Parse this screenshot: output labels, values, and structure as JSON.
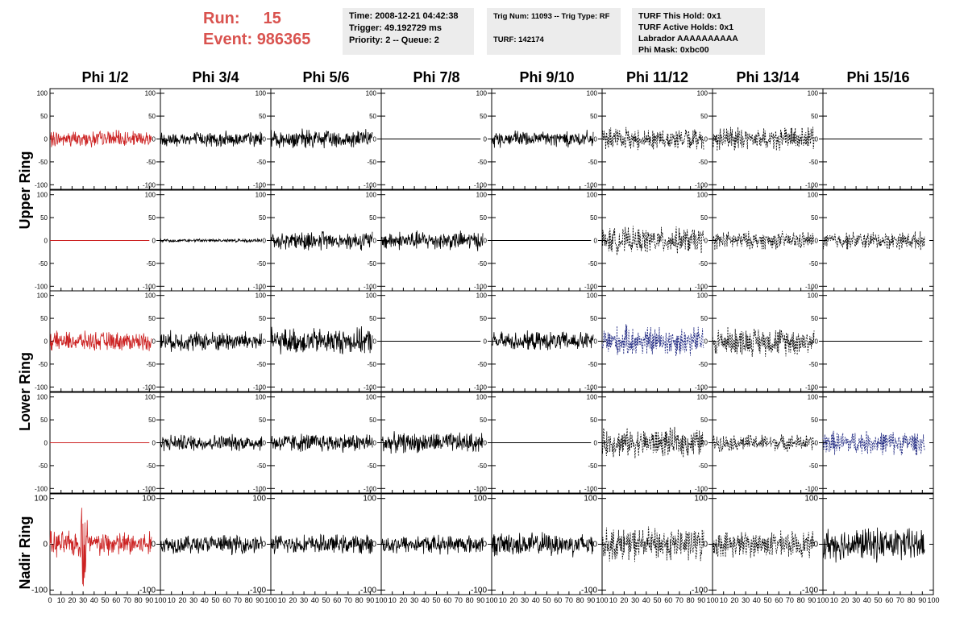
{
  "header": {
    "run_label": "Run:",
    "run_value": "15",
    "event_label": "Event:",
    "event_value": "986365"
  },
  "info": {
    "time": "Time: 2008-12-21 04:42:38",
    "trigger": "Trigger: 49.192729 ms",
    "priority": "Priority: 2 -- Queue: 2",
    "trig_num": "Trig Num: 11093 -- Trig Type: RF",
    "turf": "TURF: 142174",
    "turf_this_hold": "TURF This Hold: 0x1",
    "turf_active_holds": "TURF Active Holds: 0x1",
    "labrador": "Labrador AAAAAAAAAA",
    "phi_mask": "Phi Mask: 0xbc00"
  },
  "columns": [
    "Phi 1/2",
    "Phi 3/4",
    "Phi 5/6",
    "Phi 7/8",
    "Phi 9/10",
    "Phi 11/12",
    "Phi 13/14",
    "Phi 15/16"
  ],
  "rings": [
    "Upper Ring",
    "Lower Ring",
    "Nadir Ring"
  ],
  "chart_data": {
    "type": "line",
    "xlim": [
      0,
      100
    ],
    "ylim": [
      -110,
      110
    ],
    "ytick_labels": [
      "-100",
      "-50",
      "0",
      "50",
      "100"
    ],
    "nadir_ytick_labels": [
      "-100",
      "0",
      "100"
    ],
    "xtick_labels_col1": [
      "0",
      "10",
      "20",
      "30",
      "40",
      "50",
      "60",
      "70",
      "80",
      "90",
      "100"
    ],
    "xtick_labels_other": [
      "10",
      "20",
      "30",
      "40",
      "50",
      "60",
      "70",
      "80",
      "90",
      "100"
    ],
    "colors": {
      "red": "#cc2222",
      "black": "#000000",
      "blue": "#1a237e"
    },
    "rows": [
      [
        {
          "style": "solid",
          "color": "red",
          "amp": 14,
          "spike": 0
        },
        {
          "style": "solid",
          "color": "black",
          "amp": 13,
          "spike": 0
        },
        {
          "style": "solid",
          "color": "black",
          "amp": 16,
          "spike": 0
        },
        {
          "style": "flat",
          "color": "black",
          "amp": 0,
          "spike": 0
        },
        {
          "style": "solid",
          "color": "black",
          "amp": 14,
          "spike": 0
        },
        {
          "style": "dash",
          "color": "black",
          "amp": 18,
          "spike": 0
        },
        {
          "style": "dash",
          "color": "black",
          "amp": 20,
          "spike": 0
        },
        {
          "style": "flat",
          "color": "black",
          "amp": 0,
          "spike": 0
        }
      ],
      [
        {
          "style": "flat",
          "color": "red",
          "amp": 0,
          "spike": 0
        },
        {
          "style": "solid",
          "color": "black",
          "amp": 3,
          "spike": 0
        },
        {
          "style": "solid",
          "color": "black",
          "amp": 16,
          "spike": 0
        },
        {
          "style": "solid",
          "color": "black",
          "amp": 16,
          "spike": 0
        },
        {
          "style": "flat",
          "color": "black",
          "amp": 0,
          "spike": 0
        },
        {
          "style": "dash",
          "color": "black",
          "amp": 22,
          "spike": 0
        },
        {
          "style": "dash",
          "color": "black",
          "amp": 15,
          "spike": 0
        },
        {
          "style": "dash",
          "color": "black",
          "amp": 15,
          "spike": 0
        }
      ],
      [
        {
          "style": "solid",
          "color": "red",
          "amp": 16,
          "spike": 0
        },
        {
          "style": "solid",
          "color": "black",
          "amp": 17,
          "spike": 0
        },
        {
          "style": "solid",
          "color": "black",
          "amp": 22,
          "spike": 0
        },
        {
          "style": "flat",
          "color": "black",
          "amp": 0,
          "spike": 0
        },
        {
          "style": "solid",
          "color": "black",
          "amp": 16,
          "spike": 0
        },
        {
          "style": "dash",
          "color": "blue",
          "amp": 26,
          "spike": 0
        },
        {
          "style": "dash",
          "color": "black",
          "amp": 24,
          "spike": 0
        },
        {
          "style": "flat",
          "color": "black",
          "amp": 0,
          "spike": 0
        }
      ],
      [
        {
          "style": "flat",
          "color": "red",
          "amp": 0,
          "spike": 0
        },
        {
          "style": "solid",
          "color": "black",
          "amp": 14,
          "spike": 0
        },
        {
          "style": "solid",
          "color": "black",
          "amp": 16,
          "spike": 0
        },
        {
          "style": "solid",
          "color": "black",
          "amp": 17,
          "spike": 0
        },
        {
          "style": "flat",
          "color": "black",
          "amp": 0,
          "spike": 0
        },
        {
          "style": "dash",
          "color": "black",
          "amp": 24,
          "spike": 0
        },
        {
          "style": "dash",
          "color": "black",
          "amp": 14,
          "spike": 0
        },
        {
          "style": "dash",
          "color": "blue",
          "amp": 20,
          "spike": 0
        }
      ],
      [
        {
          "style": "solid",
          "color": "red",
          "amp": 22,
          "spike": 1
        },
        {
          "style": "solid",
          "color": "black",
          "amp": 16,
          "spike": 0
        },
        {
          "style": "solid",
          "color": "black",
          "amp": 16,
          "spike": 0
        },
        {
          "style": "solid",
          "color": "black",
          "amp": 16,
          "spike": 0
        },
        {
          "style": "solid",
          "color": "black",
          "amp": 20,
          "spike": 0
        },
        {
          "style": "dash",
          "color": "black",
          "amp": 28,
          "spike": 0
        },
        {
          "style": "dash",
          "color": "black",
          "amp": 22,
          "spike": 0
        },
        {
          "style": "solid",
          "color": "black",
          "amp": 28,
          "spike": 0
        }
      ]
    ]
  }
}
